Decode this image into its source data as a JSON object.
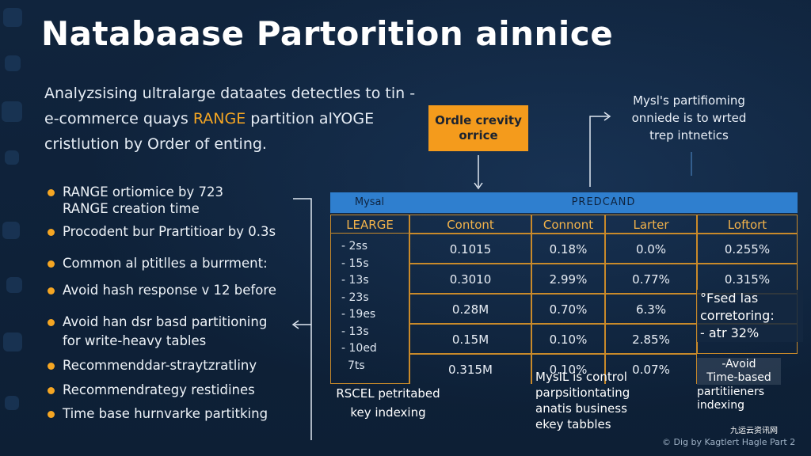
{
  "title": "Natabaase Partorition ainnice",
  "intro": {
    "line1": "Analyzsising ultralarge dataates detectles to tin -",
    "line2_pre": "e-commerce quays ",
    "line2_accent": "RANGE",
    "line2_post": " partition alYOGE",
    "line3": "cristlution by Order of enting."
  },
  "callout": {
    "line1": "Ordle crevity",
    "line2": "orrice"
  },
  "note_top": {
    "line1": "Mysl's partifioming",
    "line2": "onniede is to wrted",
    "line3": "trep intnetics"
  },
  "bullets": [
    {
      "line1": "RANGE ortiomice by 723",
      "line2": "RANGE creation time"
    },
    {
      "line1": "Procodent bur Prartitioar by 0.3s"
    },
    {
      "line1": "Common al ptitlles a burrment:"
    },
    {
      "line1": "Avoid hash response v 12 before"
    },
    {
      "line1": "Avoid han dsr basd partitioning",
      "line2": "for write-heavy tables"
    },
    {
      "line1": "Recommenddar-straytzratliny"
    },
    {
      "line1": "Recommendrategy restidines"
    },
    {
      "line1": "Time base hurnvarke partitking"
    }
  ],
  "table": {
    "corner": "Mysal",
    "group_header": "PREDCAND",
    "columns": [
      "LEARGE",
      "Contont",
      "Connont",
      "Larter",
      "Loftort"
    ],
    "row_labels": [
      "- 2ss",
      "- 15s",
      "- 13s",
      "- 23s",
      "- 19es",
      "- 13s",
      "- 10ed",
      "7ts"
    ],
    "rows": [
      [
        "0.1015",
        "0.18%",
        "0.0%",
        "0.255%"
      ],
      [
        "0.3010",
        "2.99%",
        "0.77%",
        "0.315%"
      ],
      [
        "0.28M",
        "0.70%",
        "6.3%",
        ""
      ],
      [
        "0.15M",
        "0.10%",
        "2.85%",
        ""
      ],
      [
        "0.315M",
        "0.10%",
        "0.07%",
        ""
      ]
    ]
  },
  "side_note": {
    "line1": "°Fsed las",
    "line2": "corretoring:",
    "line3": "- atr 32%"
  },
  "avoid_note": {
    "line1": "-Avoid",
    "line2": "Time-based"
  },
  "footnotes": {
    "f1_line1": "RSCEL petritabed",
    "f1_line2": "key indexing",
    "f2_line1": "MysIL is control",
    "f2_line2": "parpsitiontating",
    "f2_line3": "anatis business",
    "f2_line4": "ekey tabbles",
    "f3_line1": "partitiieners",
    "f3_line2": "indexing"
  },
  "credit": "© Dig by Kagtlert Hagle Part 2",
  "watermark": "九运云资讯网",
  "colors": {
    "accent": "#f5a623",
    "table_header": "#2f7fcf",
    "bg": "#0f2239"
  }
}
